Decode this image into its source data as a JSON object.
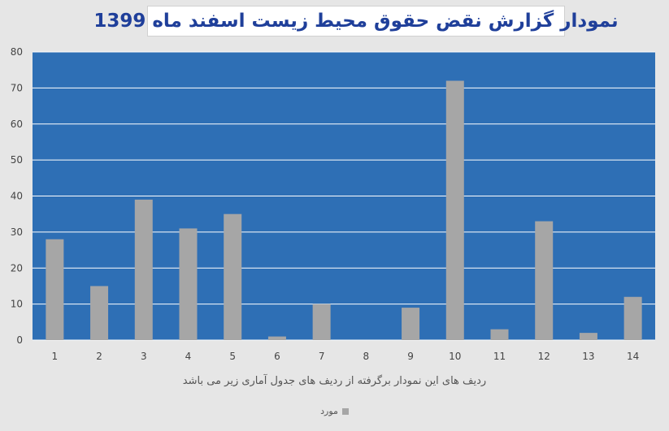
{
  "chart_data": {
    "type": "bar",
    "title": "نمودار گزارش نقض حقوق محیط زیست اسفند ماه 1399",
    "xlabel": "ردیف های این نمودار برگرفته از ردیف های جدول آماری زیر می باشد",
    "categories": [
      "1",
      "2",
      "3",
      "4",
      "5",
      "6",
      "7",
      "8",
      "9",
      "10",
      "11",
      "12",
      "13",
      "14"
    ],
    "series": [
      {
        "name": "مورد",
        "values": [
          28,
          15,
          39,
          31,
          35,
          1,
          10,
          0,
          9,
          72,
          3,
          33,
          2,
          12
        ]
      }
    ],
    "yticks": [
      "0",
      "10",
      "20",
      "30",
      "40",
      "50",
      "60",
      "70",
      "80"
    ],
    "ylim": [
      0,
      80
    ],
    "grid": true,
    "legend_position": "bottom",
    "colors": {
      "plot_background": "#2e6fb5",
      "bar": "#a6a6a6",
      "gridline": "#ffffff",
      "title_text": "#1f3f9a"
    }
  }
}
